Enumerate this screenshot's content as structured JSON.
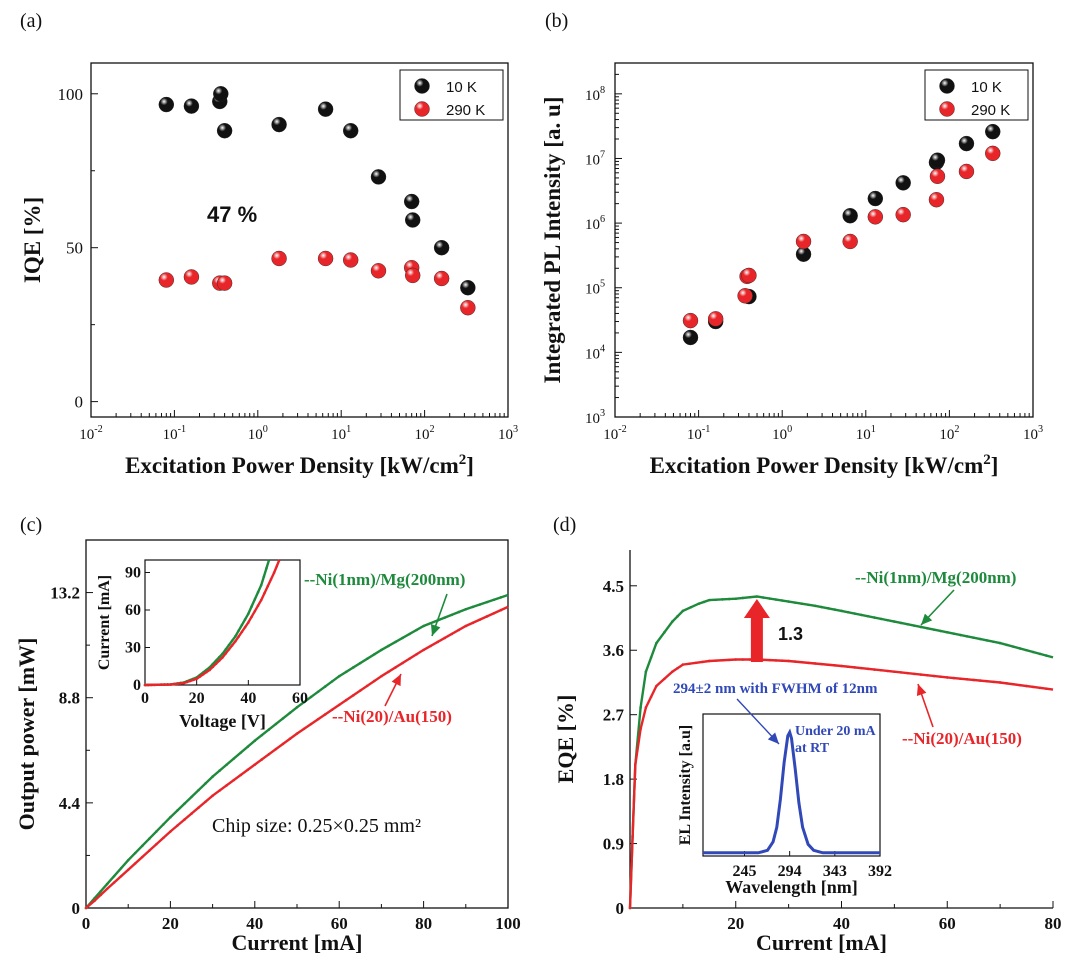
{
  "colors": {
    "black": "#111111",
    "red": "#e8262a",
    "green": "#1e8a3c",
    "blue": "#3048b8",
    "arrow_red": "#e8262a"
  },
  "chart_data": [
    {
      "id": "a",
      "panel_label": "(a)",
      "type": "scatter",
      "xlabel": "Excitation Power Density [kW/cm2]",
      "ylabel": "IQE [%]",
      "xscale": "log",
      "xlim": [
        0.01,
        1000
      ],
      "ylim": [
        -5,
        110
      ],
      "xticks": [
        0.01,
        0.1,
        1,
        10,
        100,
        1000
      ],
      "xtick_labels": [
        {
          "b": "10",
          "e": "-2"
        },
        {
          "b": "10",
          "e": "-1"
        },
        {
          "b": "10",
          "e": "0"
        },
        {
          "b": "10",
          "e": "1"
        },
        {
          "b": "10",
          "e": "2"
        },
        {
          "b": "10",
          "e": "3"
        }
      ],
      "yticks": [
        0,
        50,
        100
      ],
      "ytick_labels": [
        "0",
        "50",
        "100"
      ],
      "legend_position": "top-right",
      "annotations": [
        {
          "text": "47 %"
        }
      ],
      "series": [
        {
          "name": "10 K",
          "color": "#111111",
          "x": [
            0.08,
            0.16,
            0.35,
            0.36,
            0.4,
            1.8,
            6.5,
            13,
            28,
            70,
            72,
            160,
            330
          ],
          "y": [
            96.5,
            96,
            97.5,
            100,
            88,
            90,
            95,
            88,
            73,
            65,
            59,
            50,
            37
          ]
        },
        {
          "name": "290 K",
          "color": "#e8262a",
          "x": [
            0.08,
            0.16,
            0.35,
            0.4,
            1.8,
            6.5,
            13,
            28,
            70,
            72,
            160,
            330
          ],
          "y": [
            39.5,
            40.5,
            38.5,
            38.5,
            46.5,
            46.5,
            46,
            42.5,
            43.5,
            41,
            40,
            30.5
          ]
        }
      ]
    },
    {
      "id": "b",
      "panel_label": "(b)",
      "type": "scatter",
      "xlabel": "Excitation Power Density [kW/cm2]",
      "ylabel": "Integrated PL Intensity [a. u]",
      "xscale": "log",
      "yscale": "log",
      "xlim": [
        0.01,
        1000
      ],
      "ylim": [
        1000,
        300000000
      ],
      "xticks": [
        0.01,
        0.1,
        1,
        10,
        100,
        1000
      ],
      "xtick_labels": [
        {
          "b": "10",
          "e": "-2"
        },
        {
          "b": "10",
          "e": "-1"
        },
        {
          "b": "10",
          "e": "0"
        },
        {
          "b": "10",
          "e": "1"
        },
        {
          "b": "10",
          "e": "2"
        },
        {
          "b": "10",
          "e": "3"
        }
      ],
      "yticks": [
        1000,
        10000,
        100000,
        1000000,
        10000000,
        100000000
      ],
      "ytick_labels": [
        {
          "b": "10",
          "e": "3"
        },
        {
          "b": "10",
          "e": "4"
        },
        {
          "b": "10",
          "e": "5"
        },
        {
          "b": "10",
          "e": "6"
        },
        {
          "b": "10",
          "e": "7"
        },
        {
          "b": "10",
          "e": "8"
        }
      ],
      "legend_position": "top-right",
      "series": [
        {
          "name": "10 K",
          "color": "#111111",
          "x": [
            0.08,
            0.16,
            0.4,
            1.8,
            6.5,
            13,
            28,
            70,
            72,
            160,
            330
          ],
          "y": [
            17000,
            30000,
            73000,
            330000,
            1300000,
            2400000,
            4200000,
            8700000,
            9400000,
            17000000,
            26000000
          ]
        },
        {
          "name": "290 K",
          "color": "#e8262a",
          "x": [
            0.08,
            0.16,
            0.36,
            0.38,
            0.4,
            1.8,
            6.5,
            13,
            28,
            70,
            72,
            160,
            330
          ],
          "y": [
            31000,
            33000,
            75000,
            150000,
            155000,
            520000,
            520000,
            1250000,
            1350000,
            2300000,
            5300000,
            6300000,
            12000000
          ]
        }
      ]
    },
    {
      "id": "c",
      "panel_label": "(c)",
      "type": "line",
      "xlabel": "Current [mA]",
      "ylabel": "Output power [mW]",
      "xlim": [
        0,
        100
      ],
      "ylim": [
        0,
        15.4
      ],
      "xticks": [
        0,
        20,
        40,
        60,
        80,
        100
      ],
      "xtick_labels": [
        "0",
        "20",
        "40",
        "60",
        "80",
        "100"
      ],
      "yticks": [
        0,
        4.4,
        8.8,
        13.2
      ],
      "ytick_labels": [
        "0",
        "4.4",
        "8.8",
        "13.2"
      ],
      "annotations": [
        {
          "text": "Chip size: 0.25×0.25 mm²"
        }
      ],
      "series": [
        {
          "name": "--Ni(1nm)/Mg(200nm)",
          "color": "#1e8a3c",
          "x": [
            0,
            2,
            5,
            10,
            15,
            20,
            30,
            40,
            50,
            60,
            70,
            80,
            90,
            100
          ],
          "y": [
            0,
            0.4,
            1.0,
            2.0,
            2.9,
            3.8,
            5.5,
            7.0,
            8.4,
            9.7,
            10.8,
            11.8,
            12.5,
            13.1
          ]
        },
        {
          "name": "--Ni(20)/Au(150)",
          "color": "#e8262a",
          "x": [
            0,
            2,
            5,
            10,
            15,
            20,
            30,
            40,
            50,
            60,
            70,
            80,
            90,
            100
          ],
          "y": [
            0,
            0.3,
            0.8,
            1.6,
            2.4,
            3.2,
            4.7,
            6.0,
            7.3,
            8.5,
            9.7,
            10.8,
            11.8,
            12.6
          ]
        }
      ],
      "inset": {
        "type": "line",
        "xlabel": "Voltage [V]",
        "ylabel": "Current [mA]",
        "xlim": [
          0,
          60
        ],
        "ylim": [
          0,
          100
        ],
        "xticks": [
          0,
          20,
          40,
          60
        ],
        "xtick_labels": [
          "0",
          "20",
          "40",
          "60"
        ],
        "yticks": [
          0,
          30,
          60,
          90
        ],
        "ytick_labels": [
          "0",
          "30",
          "60",
          "90"
        ],
        "series": [
          {
            "color": "#1e8a3c",
            "x": [
              0,
              10,
              15,
              20,
              25,
              30,
              35,
              40,
              45,
              48
            ],
            "y": [
              0,
              0.5,
              2,
              6,
              14,
              25,
              39,
              57,
              80,
              100
            ]
          },
          {
            "color": "#e8262a",
            "x": [
              0,
              10,
              15,
              20,
              25,
              30,
              35,
              40,
              45,
              50,
              52
            ],
            "y": [
              0,
              0.4,
              1.5,
              5,
              12,
              22,
              35,
              50,
              68,
              90,
              100
            ]
          }
        ]
      }
    },
    {
      "id": "d",
      "panel_label": "(d)",
      "type": "line",
      "xlabel": "Current [mA]",
      "ylabel": "EQE [%]",
      "xlim": [
        0,
        80
      ],
      "ylim": [
        0,
        5.0
      ],
      "xticks": [
        20,
        40,
        60,
        80
      ],
      "xtick_labels": [
        "20",
        "40",
        "60",
        "80"
      ],
      "yticks": [
        0,
        0.9,
        1.8,
        2.7,
        3.6,
        4.5
      ],
      "ytick_labels": [
        "0",
        "0.9",
        "1.8",
        "2.7",
        "3.6",
        "4.5"
      ],
      "annotations": [
        {
          "text": "1.3"
        }
      ],
      "series": [
        {
          "name": "--Ni(1nm)/Mg(200nm)",
          "color": "#1e8a3c",
          "x": [
            0,
            0.5,
            1,
            2,
            3,
            5,
            8,
            10,
            13,
            15,
            20,
            24,
            30,
            35,
            40,
            50,
            60,
            70,
            80
          ],
          "y": [
            0,
            1.0,
            2.0,
            2.8,
            3.3,
            3.7,
            4.0,
            4.15,
            4.25,
            4.3,
            4.32,
            4.35,
            4.28,
            4.22,
            4.15,
            4.0,
            3.85,
            3.7,
            3.5
          ]
        },
        {
          "name": "--Ni(20)/Au(150)",
          "color": "#e8262a",
          "x": [
            0,
            0.5,
            1,
            2,
            3,
            5,
            8,
            10,
            15,
            20,
            24,
            30,
            40,
            50,
            60,
            70,
            80
          ],
          "y": [
            0,
            1.0,
            2.0,
            2.5,
            2.8,
            3.1,
            3.3,
            3.4,
            3.45,
            3.47,
            3.47,
            3.45,
            3.38,
            3.3,
            3.22,
            3.15,
            3.05
          ]
        }
      ],
      "inset": {
        "type": "line",
        "xlabel": "Wavelength [nm]",
        "ylabel": "EL Intensity [a.u]",
        "xlim": [
          200,
          392
        ],
        "ylim": [
          0,
          1.15
        ],
        "xticks": [
          245,
          294,
          343,
          392
        ],
        "xtick_labels": [
          "245",
          "294",
          "343",
          "392"
        ],
        "annotations": [
          {
            "text": "294±2 nm with FWHM of 12nm"
          },
          {
            "text": "Under 20 mA"
          },
          {
            "text": "at RT"
          }
        ],
        "series": [
          {
            "color": "#3048b8",
            "x": [
              200,
              260,
              270,
              276,
              280,
              284,
              288,
              292,
              294,
              296,
              300,
              304,
              308,
              314,
              320,
              330,
              392
            ],
            "y": [
              0.01,
              0.01,
              0.03,
              0.1,
              0.22,
              0.45,
              0.75,
              0.97,
              1.0,
              0.95,
              0.7,
              0.42,
              0.22,
              0.08,
              0.03,
              0.01,
              0.01
            ]
          }
        ]
      }
    }
  ]
}
